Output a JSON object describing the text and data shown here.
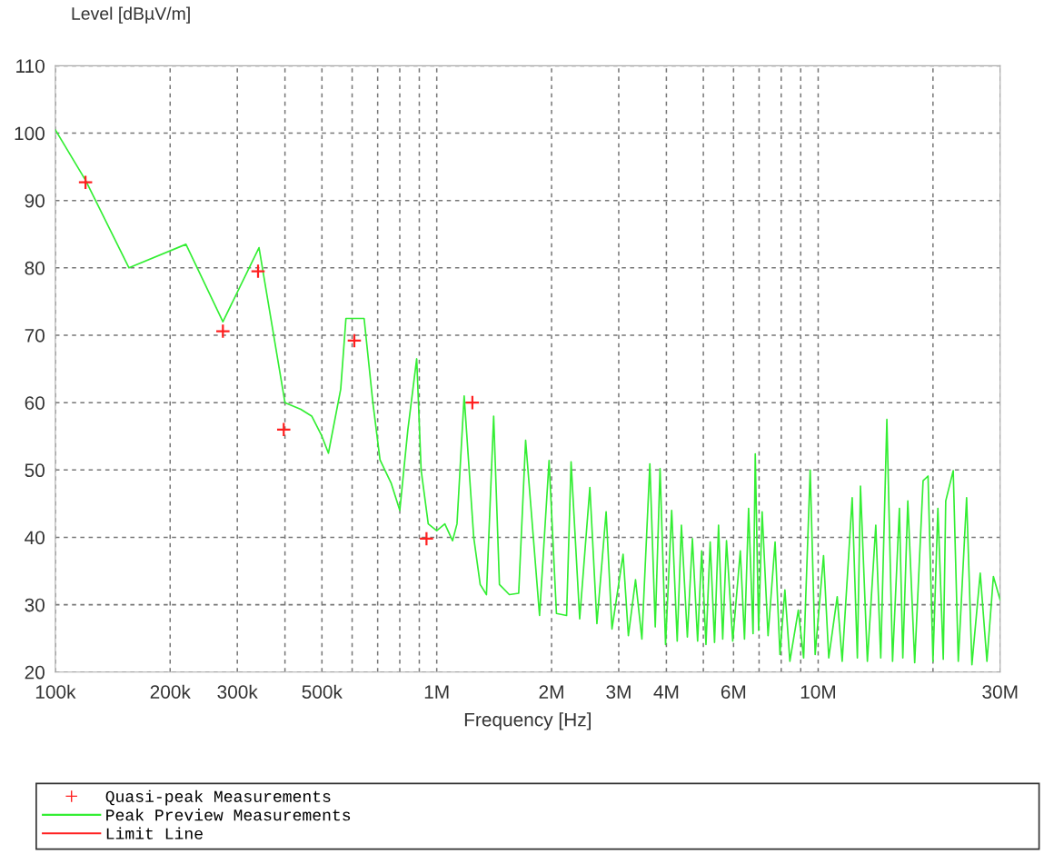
{
  "chart_data": {
    "type": "line",
    "xlabel": "Frequency [Hz]",
    "ylabel": "Level [dBµV/m]",
    "log": "x",
    "grid": true,
    "legend": "bottom",
    "xlim": [
      100000,
      30000000
    ],
    "ylim": [
      20,
      110
    ],
    "yticks": [
      20,
      30,
      40,
      50,
      60,
      70,
      80,
      90,
      100,
      110
    ],
    "xticks": [
      {
        "value": 100000,
        "label": "100k"
      },
      {
        "value": 200000,
        "label": "200k"
      },
      {
        "value": 300000,
        "label": "300k"
      },
      {
        "value": 400000,
        "label": null
      },
      {
        "value": 500000,
        "label": "500k"
      },
      {
        "value": 600000,
        "label": null
      },
      {
        "value": 700000,
        "label": null
      },
      {
        "value": 800000,
        "label": null
      },
      {
        "value": 900000,
        "label": null
      },
      {
        "value": 1000000,
        "label": "1M"
      },
      {
        "value": 2000000,
        "label": "2M"
      },
      {
        "value": 3000000,
        "label": "3M"
      },
      {
        "value": 4000000,
        "label": "4M"
      },
      {
        "value": 5000000,
        "label": null
      },
      {
        "value": 6000000,
        "label": "6M"
      },
      {
        "value": 7000000,
        "label": null
      },
      {
        "value": 8000000,
        "label": null
      },
      {
        "value": 9000000,
        "label": null
      },
      {
        "value": 10000000,
        "label": "10M"
      },
      {
        "value": 20000000,
        "label": null
      },
      {
        "value": 30000000,
        "label": "30M"
      }
    ],
    "series": [
      {
        "name": "Quasi-peak Measurements",
        "type": "scatter",
        "marker": "cross",
        "color": "#ff2020",
        "x": [
          120000,
          275000,
          340000,
          397000,
          608000,
          940000,
          1240000
        ],
        "values": [
          92.7,
          70.6,
          79.5,
          56,
          69.2,
          39.8,
          60
        ]
      },
      {
        "name": "Peak Preview Measurements",
        "marker": "none",
        "line_style": "solid",
        "color": "#33ee33",
        "x": [
          100000,
          120000,
          156000,
          220000,
          275000,
          342000,
          400000,
          440000,
          470000,
          500000,
          520000,
          560000,
          578000,
          645000,
          680000,
          710000,
          760000,
          800000,
          840000,
          886000,
          910000,
          950000,
          1000000,
          1050000,
          1100000,
          1130000,
          1180000,
          1250000,
          1300000,
          1350000,
          1410000,
          1460000,
          1550000,
          1640000,
          1710000,
          1860000,
          1970000,
          2060000,
          2190000,
          2250000,
          2370000,
          2520000,
          2630000,
          2780000,
          2880000,
          3080000,
          3180000,
          3320000,
          3450000,
          3620000,
          3740000,
          3850000,
          3980000,
          4130000,
          4270000,
          4380000,
          4540000,
          4680000,
          4830000,
          4950000,
          5080000,
          5210000,
          5350000,
          5480000,
          5620000,
          5750000,
          5970000,
          6250000,
          6410000,
          6570000,
          6750000,
          6840000,
          6980000,
          7130000,
          7390000,
          7710000,
          7940000,
          8180000,
          8430000,
          8870000,
          9160000,
          9530000,
          9820000,
          10330000,
          10660000,
          11220000,
          11560000,
          12280000,
          12670000,
          12910000,
          13460000,
          14160000,
          14590000,
          15140000,
          15670000,
          16330000,
          16670000,
          17180000,
          17910000,
          18840000,
          19410000,
          20000000,
          20600000,
          21280000,
          21600000,
          22600000,
          23300000,
          24500000,
          25300000,
          26600000,
          27700000,
          28800000,
          30000000
        ],
        "values": [
          100.5,
          93,
          80,
          83.5,
          72,
          83,
          60,
          59,
          58,
          55,
          52.5,
          62,
          72.5,
          72.5,
          60,
          51.5,
          48,
          44,
          56,
          66.5,
          50,
          42,
          41,
          42,
          39.5,
          42,
          61,
          40,
          33,
          31.5,
          58,
          33,
          31.5,
          31.7,
          54.4,
          28.4,
          51.4,
          28.7,
          28.4,
          51.2,
          27.9,
          47.4,
          27.2,
          43.8,
          26.4,
          37.5,
          25.4,
          33.7,
          24.9,
          50.9,
          26.7,
          50.2,
          24.1,
          44,
          24.6,
          41.8,
          25.2,
          39.8,
          24.6,
          38,
          24.1,
          39.3,
          24.4,
          41.8,
          24.9,
          39.5,
          24.6,
          38,
          24.9,
          44.3,
          25.7,
          52.4,
          26.2,
          43.8,
          25.4,
          39.3,
          22.6,
          32.2,
          21.6,
          29.2,
          22.1,
          50,
          22.6,
          37.3,
          22.1,
          31.2,
          21.6,
          45.9,
          22.1,
          47.6,
          21.6,
          41.8,
          22.1,
          57.5,
          21.6,
          44.3,
          22.1,
          45.4,
          21.4,
          48.4,
          49.1,
          21.6,
          44.3,
          21.9,
          45.4,
          49.9,
          21.6,
          45.9,
          21.1,
          34.7,
          21.6,
          34.2,
          30.7
        ]
      },
      {
        "name": "Limit Line",
        "marker": "none",
        "line_style": "solid",
        "color": "#ff2020"
      }
    ]
  }
}
